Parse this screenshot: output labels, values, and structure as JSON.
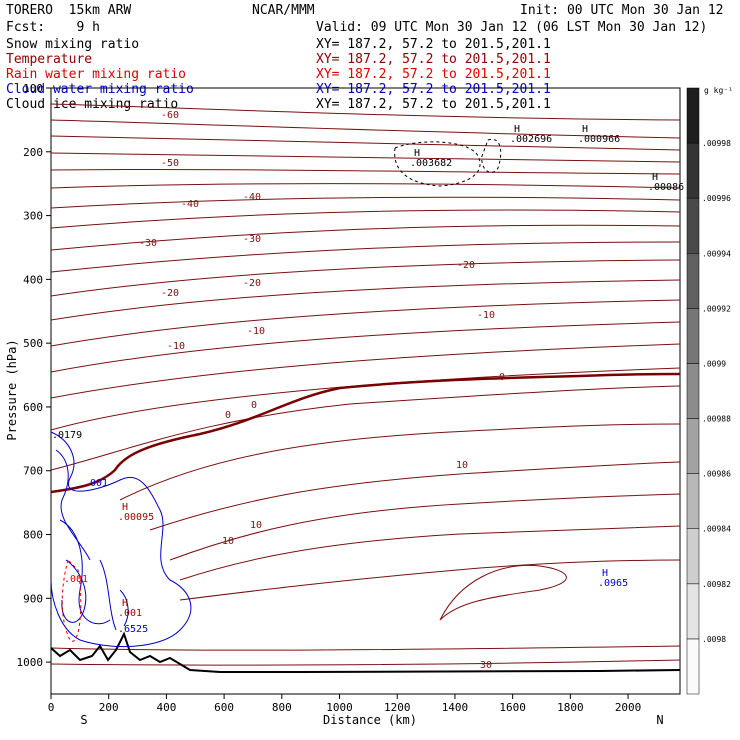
{
  "header": {
    "model": "TORERO  15km ARW",
    "center": "NCAR/MMM",
    "init": "Init: 00 UTC Mon 30 Jan 12",
    "fcst": "Fcst:    9 h",
    "valid": "Valid: 09 UTC Mon 30 Jan 12 (06 LST Mon 30 Jan 12)"
  },
  "fields": [
    {
      "name": "Snow mixing ratio",
      "range": "XY= 187.2, 57.2 to 201.5,201.1",
      "color": "#000000"
    },
    {
      "name": "Temperature",
      "range": "XY= 187.2, 57.2 to 201.5,201.1",
      "color": "#8b0000"
    },
    {
      "name": "Rain water mixing ratio",
      "range": "XY= 187.2, 57.2 to 201.5,201.1",
      "color": "#e00000"
    },
    {
      "name": "Cloud water mixing ratio",
      "range": "XY= 187.2, 57.2 to 201.5,201.1",
      "color": "#0000cc"
    },
    {
      "name": "Cloud ice mixing ratio",
      "range": "XY= 187.2, 57.2 to 201.5,201.1",
      "color": "#000000"
    }
  ],
  "chart_data": {
    "type": "cross-section contour",
    "xlabel": "Distance (km)",
    "ylabel": "Pressure (hPa)",
    "xlim": [
      0,
      2180
    ],
    "ylim_pressure_hpa": [
      1050,
      100
    ],
    "x_ticks": [
      0,
      200,
      400,
      600,
      800,
      1000,
      1200,
      1400,
      1600,
      1800,
      2000
    ],
    "y_ticks": [
      100,
      200,
      300,
      400,
      500,
      600,
      700,
      800,
      900,
      1000
    ],
    "endpoints": {
      "left": "S",
      "right": "N"
    },
    "colorbar": {
      "unit": "g kg⁻¹",
      "ticks": [
        ".0098",
        ".00982",
        ".00984",
        ".00986",
        ".00988",
        ".0099",
        ".00992",
        ".00994",
        ".00996",
        ".00998"
      ]
    },
    "temperature_contour_labels": [
      "-60",
      "-50",
      "-40",
      "-40",
      "-30",
      "-30",
      "-20",
      "-20",
      "-20",
      "-10",
      "-10",
      "-10",
      "0",
      "0",
      "0",
      "10",
      "10",
      "10",
      "30"
    ],
    "annotations": [
      {
        "label": "H",
        "value": ".003682"
      },
      {
        "label": "H",
        "value": ".002696"
      },
      {
        "label": "H",
        "value": ".000966"
      },
      {
        "label": "H",
        "value": ".00086"
      },
      {
        "label": "H",
        "value": ".0965"
      },
      {
        "label": "H",
        "value": ".00095"
      },
      {
        "label": "H",
        "value": ".001"
      },
      {
        "label": "",
        "value": ".001"
      },
      {
        "label": "",
        "value": ".0179"
      },
      {
        "label": "",
        "value": ".001"
      },
      {
        "label": "",
        "value": ".6525"
      }
    ]
  }
}
